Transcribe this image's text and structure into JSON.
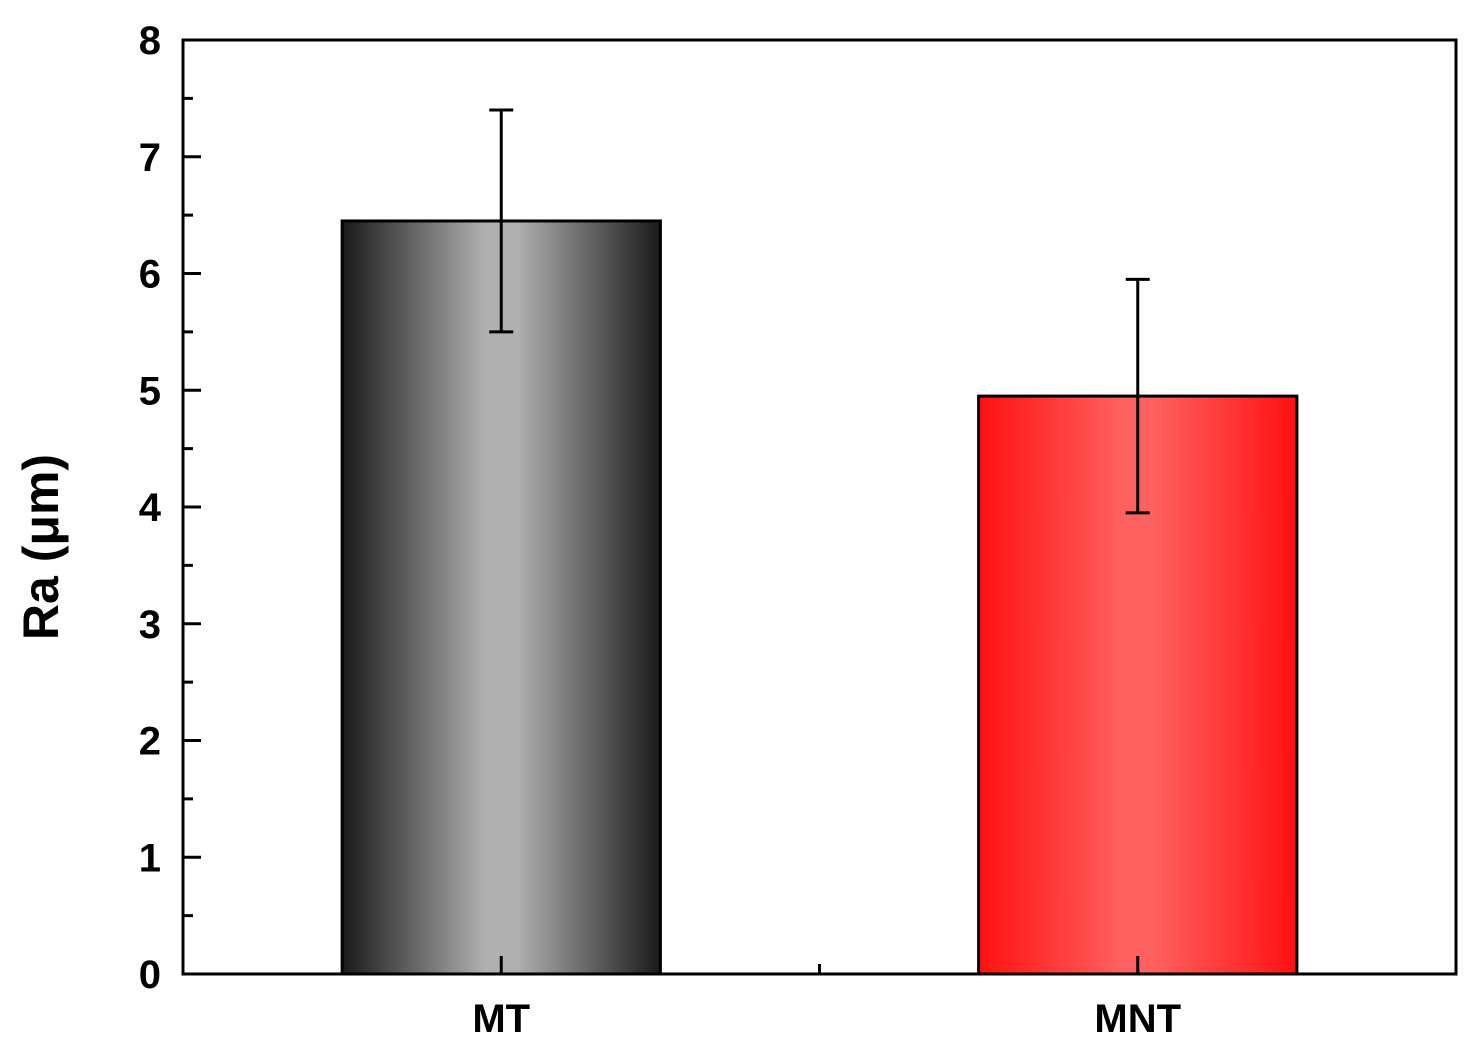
{
  "chart_data": {
    "type": "bar",
    "title": "",
    "xlabel": "",
    "ylabel": "Ra (μm)",
    "categories": [
      "MT",
      "MNT"
    ],
    "values": [
      6.45,
      4.95
    ],
    "error": [
      0.95,
      1.0
    ],
    "ylim": [
      0,
      8
    ],
    "yticks": [
      0,
      1,
      2,
      3,
      4,
      5,
      6,
      7,
      8
    ],
    "yminor_step": 0.5,
    "grid": false,
    "legend": "none",
    "bar_colors": [
      {
        "edge": "#1a1a1a",
        "center": "#b0b0b0"
      },
      {
        "edge": "#ff1010",
        "center": "#ff6060"
      }
    ]
  }
}
